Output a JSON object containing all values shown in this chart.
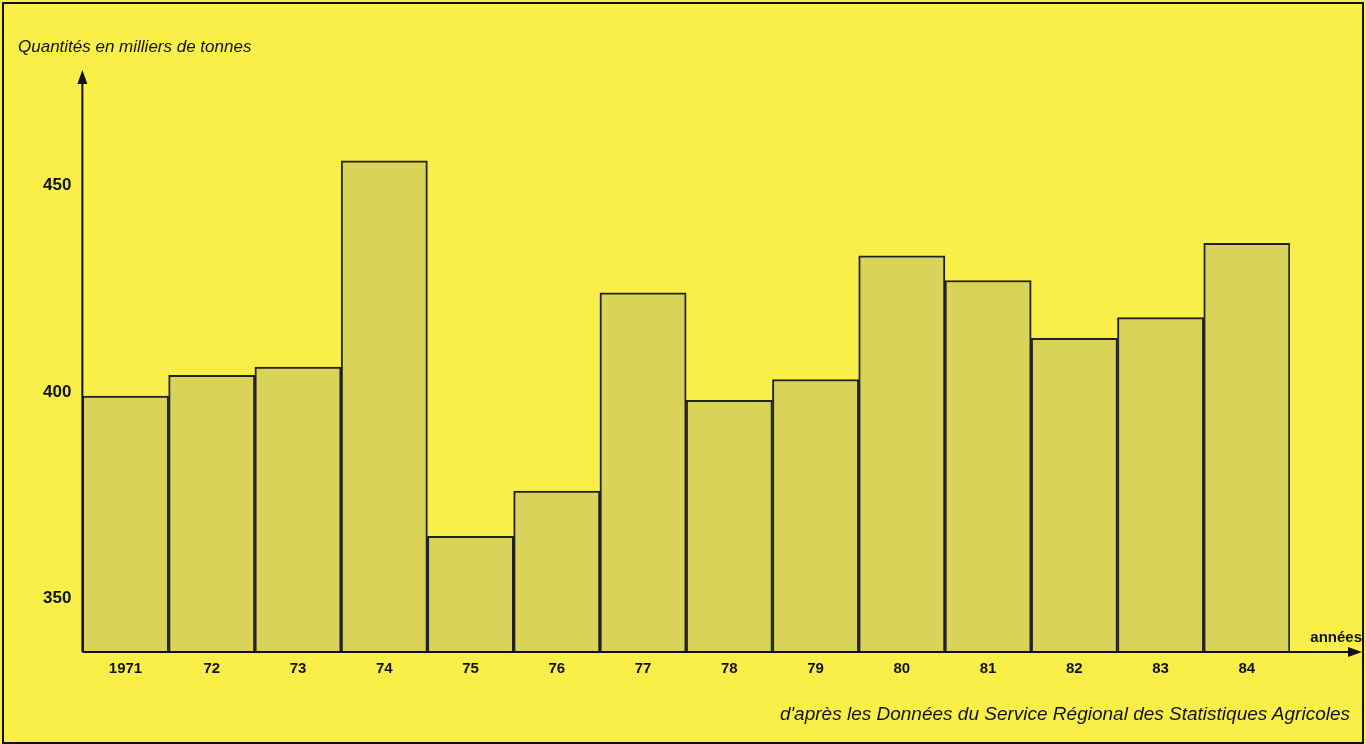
{
  "chart_data": {
    "type": "bar",
    "ylabel": "Quantités en milliers de tonnes",
    "xlabel": "années",
    "categories": [
      "1971",
      "72",
      "73",
      "74",
      "75",
      "76",
      "77",
      "78",
      "79",
      "80",
      "81",
      "82",
      "83",
      "84"
    ],
    "values": [
      399,
      404,
      406,
      456,
      365,
      376,
      424,
      398,
      403,
      433,
      427,
      413,
      418,
      436
    ],
    "color": "#d9d35a",
    "ylim": [
      337,
      478
    ],
    "yticks": [
      350,
      400,
      450
    ],
    "grid": false,
    "legend": false,
    "annotations": [
      "d'après les Données du Service Régional des Statistiques Agricoles"
    ]
  }
}
